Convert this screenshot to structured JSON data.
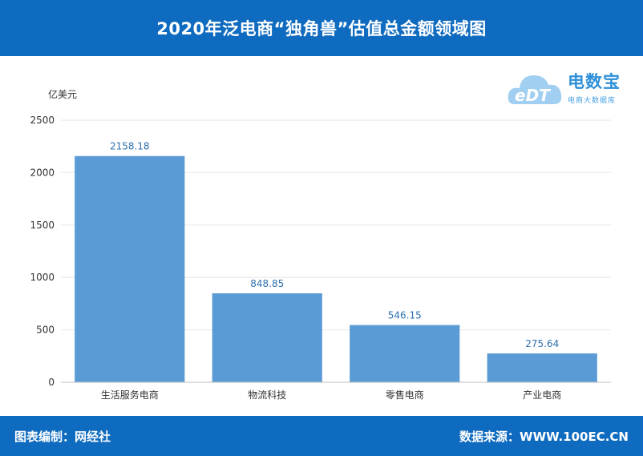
{
  "header": {
    "title": "2020年泛电商“独角兽”估值总金额领域图"
  },
  "footer": {
    "left": "图表编制：网经社",
    "right": "数据来源：WWW.100EC.CN"
  },
  "logo": {
    "name": "电数宝",
    "sub": "电商大数据库",
    "mark": "eDT"
  },
  "colors": {
    "header_bg": "#0f6bbf",
    "bar": "#5b9bd5",
    "data_label": "#2f6fae"
  },
  "chart_data": {
    "type": "bar",
    "unit": "亿美元",
    "categories": [
      "生活服务电商",
      "物流科技",
      "零售电商",
      "产业电商"
    ],
    "values": [
      2158.18,
      848.85,
      546.15,
      275.64
    ],
    "value_labels": [
      "2158.18",
      "848.85",
      "546.15",
      "275.64"
    ],
    "ylim": [
      0,
      2500
    ],
    "yticks": [
      0,
      500,
      1000,
      1500,
      2000,
      2500
    ],
    "ytick_labels": [
      "0",
      "500",
      "1000",
      "1500",
      "2000",
      "2500"
    ],
    "grid": true
  }
}
